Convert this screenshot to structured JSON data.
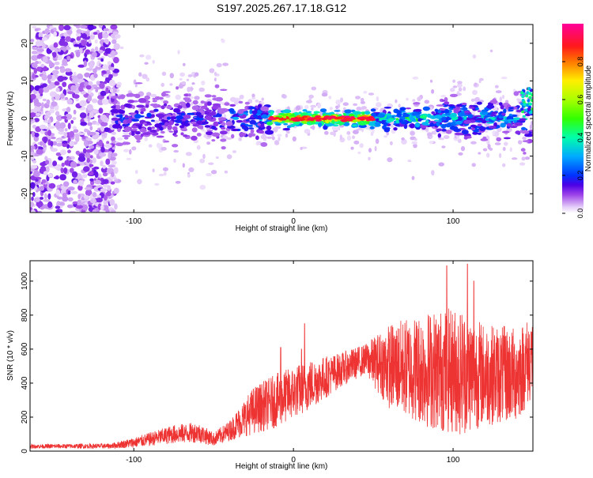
{
  "title": "S197.2025.267.17.18.G12",
  "chart_data": [
    {
      "type": "heatmap",
      "xlabel": "Height of straight line (km)",
      "ylabel": "Frequency (Hz)",
      "xlim": [
        -165,
        150
      ],
      "ylim": [
        -25,
        25
      ],
      "x_ticks": [
        -100,
        0,
        100
      ],
      "y_ticks": [
        -20,
        -10,
        0,
        10,
        20
      ],
      "description_values": {
        "signal_band_center_hz": 0,
        "strong_signal_x_range_km": [
          -15,
          50
        ],
        "scattered_noise_x_range_km": [
          -165,
          -110
        ]
      },
      "colorbar": {
        "label": "Normalized spectral amplitude",
        "range": [
          0,
          1
        ],
        "ticks": [
          0.0,
          0.2,
          0.4,
          0.6,
          0.8
        ],
        "tick_labels": [
          "0.0",
          "0.2",
          "0.4",
          "0.6",
          "0.8"
        ],
        "colors": [
          "#ffffff",
          "#e3c8f7",
          "#8a2be2",
          "#4b00e6",
          "#0033ff",
          "#00ccff",
          "#00ff66",
          "#ccff00",
          "#ffcc00",
          "#ff3300",
          "#ff00aa"
        ]
      }
    },
    {
      "type": "line",
      "xlabel": "Height of straight line (km)",
      "ylabel": "SNR (10 * v/v)",
      "xlim": [
        -165,
        150
      ],
      "ylim": [
        0,
        1120
      ],
      "x_ticks": [
        -100,
        0,
        100
      ],
      "y_ticks": [
        0,
        200,
        400,
        600,
        800,
        1000
      ],
      "color": "#ee3333",
      "envelope": [
        {
          "x": -165,
          "mean": 28,
          "amp": 12
        },
        {
          "x": -115,
          "mean": 30,
          "amp": 15
        },
        {
          "x": -100,
          "mean": 50,
          "amp": 30
        },
        {
          "x": -75,
          "mean": 100,
          "amp": 55
        },
        {
          "x": -60,
          "mean": 110,
          "amp": 60
        },
        {
          "x": -50,
          "mean": 70,
          "amp": 40
        },
        {
          "x": -40,
          "mean": 120,
          "amp": 60
        },
        {
          "x": -25,
          "mean": 240,
          "amp": 140
        },
        {
          "x": -10,
          "mean": 300,
          "amp": 160
        },
        {
          "x": 10,
          "mean": 390,
          "amp": 150
        },
        {
          "x": 30,
          "mean": 480,
          "amp": 100
        },
        {
          "x": 45,
          "mean": 540,
          "amp": 90
        },
        {
          "x": 60,
          "mean": 500,
          "amp": 250
        },
        {
          "x": 85,
          "mean": 480,
          "amp": 350
        },
        {
          "x": 105,
          "mean": 470,
          "amp": 380
        },
        {
          "x": 120,
          "mean": 450,
          "amp": 300
        },
        {
          "x": 140,
          "mean": 450,
          "amp": 280
        },
        {
          "x": 150,
          "mean": 560,
          "amp": 250
        }
      ],
      "peaks": [
        {
          "x": -8,
          "y": 610
        },
        {
          "x": 5,
          "y": 600
        },
        {
          "x": 7,
          "y": 750
        },
        {
          "x": 96,
          "y": 1090
        },
        {
          "x": 109,
          "y": 1100
        },
        {
          "x": 113,
          "y": 1000
        }
      ]
    }
  ]
}
